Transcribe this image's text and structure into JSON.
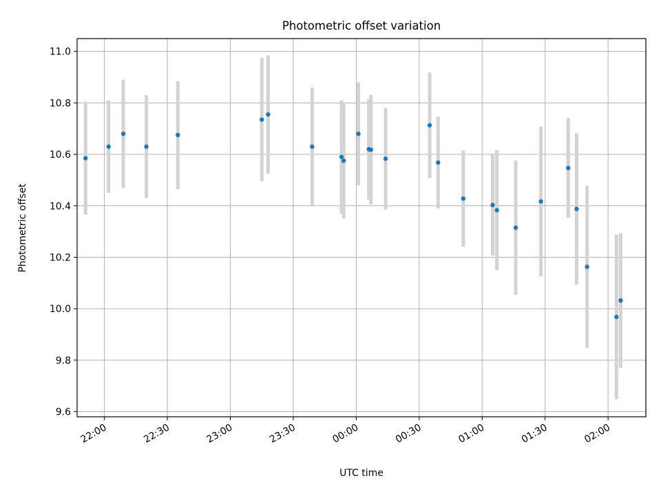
{
  "chart_data": {
    "type": "scatter",
    "title": "Photometric offset variation",
    "xlabel": "UTC time",
    "ylabel": "Photometric offset",
    "x_axis": {
      "type": "time",
      "range": [
        "21:47",
        "02:18"
      ],
      "ticks": [
        "22:00",
        "22:30",
        "23:00",
        "23:30",
        "00:00",
        "00:30",
        "01:00",
        "01:30",
        "02:00"
      ]
    },
    "y_axis": {
      "range": [
        9.58,
        11.05
      ],
      "ticks": [
        "9.6",
        "9.8",
        "10.0",
        "10.2",
        "10.4",
        "10.6",
        "10.8",
        "11.0"
      ]
    },
    "grid": true,
    "marker_color": "#1f77b4",
    "errorbar_color": "#d3d3d3",
    "points": [
      {
        "t": "21:51",
        "y": 10.585,
        "err": 0.22
      },
      {
        "t": "22:02",
        "y": 10.63,
        "err": 0.18
      },
      {
        "t": "22:09",
        "y": 10.68,
        "err": 0.21
      },
      {
        "t": "22:20",
        "y": 10.63,
        "err": 0.2
      },
      {
        "t": "22:35",
        "y": 10.675,
        "err": 0.21
      },
      {
        "t": "23:15",
        "y": 10.735,
        "err": 0.24
      },
      {
        "t": "23:18",
        "y": 10.755,
        "err": 0.23
      },
      {
        "t": "23:39",
        "y": 10.63,
        "err": 0.23
      },
      {
        "t": "23:53",
        "y": 10.59,
        "err": 0.22
      },
      {
        "t": "23:54",
        "y": 10.575,
        "err": 0.225
      },
      {
        "t": "00:01",
        "y": 10.68,
        "err": 0.2
      },
      {
        "t": "00:06",
        "y": 10.62,
        "err": 0.195
      },
      {
        "t": "00:07",
        "y": 10.618,
        "err": 0.213
      },
      {
        "t": "00:14",
        "y": 10.583,
        "err": 0.198
      },
      {
        "t": "00:35",
        "y": 10.713,
        "err": 0.205
      },
      {
        "t": "00:39",
        "y": 10.568,
        "err": 0.178
      },
      {
        "t": "00:51",
        "y": 10.428,
        "err": 0.187
      },
      {
        "t": "01:05",
        "y": 10.403,
        "err": 0.196
      },
      {
        "t": "01:07",
        "y": 10.383,
        "err": 0.233
      },
      {
        "t": "01:16",
        "y": 10.315,
        "err": 0.261
      },
      {
        "t": "01:28",
        "y": 10.417,
        "err": 0.291
      },
      {
        "t": "01:41",
        "y": 10.547,
        "err": 0.194
      },
      {
        "t": "01:45",
        "y": 10.388,
        "err": 0.294
      },
      {
        "t": "01:50",
        "y": 10.163,
        "err": 0.315
      },
      {
        "t": "02:04",
        "y": 9.968,
        "err": 0.32
      },
      {
        "t": "02:06",
        "y": 10.032,
        "err": 0.262
      }
    ]
  }
}
